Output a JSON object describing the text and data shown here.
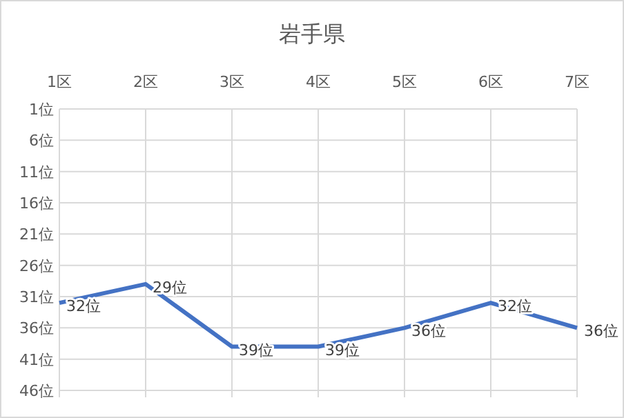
{
  "chart_data": {
    "type": "line",
    "title": "岩手県",
    "categories": [
      "1区",
      "2区",
      "3区",
      "4区",
      "5区",
      "6区",
      "7区"
    ],
    "series": [
      {
        "color": "#4472c4",
        "values": [
          32,
          29,
          39,
          39,
          36,
          32,
          36
        ],
        "value_labels": [
          "32位",
          "29位",
          "39位",
          "39位",
          "36位",
          "32位",
          "36位"
        ]
      }
    ],
    "ylim": [
      46,
      1
    ],
    "yticks": [
      {
        "value": 1,
        "label": "1位"
      },
      {
        "value": 6,
        "label": "6位"
      },
      {
        "value": 11,
        "label": "11位"
      },
      {
        "value": 16,
        "label": "16位"
      },
      {
        "value": 21,
        "label": "21位"
      },
      {
        "value": 26,
        "label": "26位"
      },
      {
        "value": 31,
        "label": "31位"
      },
      {
        "value": 36,
        "label": "36位"
      },
      {
        "value": 41,
        "label": "41位"
      },
      {
        "value": 46,
        "label": "46位"
      }
    ],
    "grid": true,
    "marker": "none",
    "line_style": "solid"
  }
}
